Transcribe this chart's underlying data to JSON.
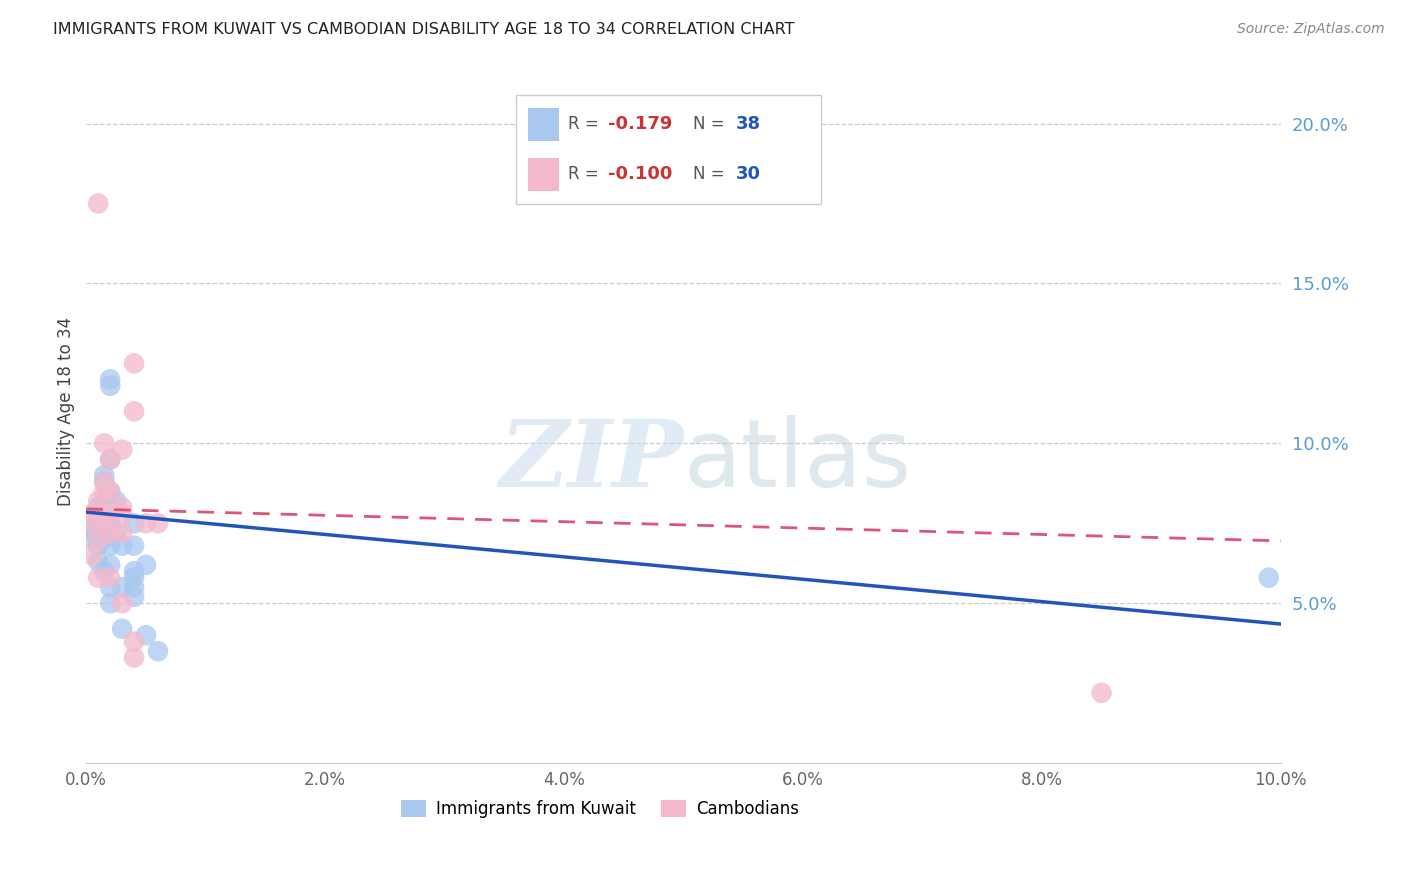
{
  "title": "IMMIGRANTS FROM KUWAIT VS CAMBODIAN DISABILITY AGE 18 TO 34 CORRELATION CHART",
  "source": "Source: ZipAtlas.com",
  "ylabel": "Disability Age 18 to 34",
  "xlim": [
    0.0,
    0.1
  ],
  "ylim": [
    0.0,
    0.22
  ],
  "xticks": [
    0.0,
    0.02,
    0.04,
    0.06,
    0.08,
    0.1
  ],
  "xtick_labels": [
    "0.0%",
    "2.0%",
    "4.0%",
    "6.0%",
    "8.0%",
    "10.0%"
  ],
  "yticks_right": [
    0.05,
    0.1,
    0.15,
    0.2
  ],
  "ytick_labels_right": [
    "5.0%",
    "10.0%",
    "15.0%",
    "20.0%"
  ],
  "blue_color": "#A8C8F0",
  "pink_color": "#F4B8CC",
  "line_blue": "#2255BB",
  "line_pink": "#DD5577",
  "watermark": "ZIPatlas",
  "blue_dots": [
    [
      0.0005,
      0.07
    ],
    [
      0.0005,
      0.073
    ],
    [
      0.001,
      0.072
    ],
    [
      0.001,
      0.068
    ],
    [
      0.001,
      0.075
    ],
    [
      0.001,
      0.08
    ],
    [
      0.001,
      0.063
    ],
    [
      0.0015,
      0.09
    ],
    [
      0.0015,
      0.088
    ],
    [
      0.0015,
      0.082
    ],
    [
      0.0015,
      0.07
    ],
    [
      0.0015,
      0.078
    ],
    [
      0.0015,
      0.06
    ],
    [
      0.002,
      0.12
    ],
    [
      0.002,
      0.118
    ],
    [
      0.002,
      0.095
    ],
    [
      0.002,
      0.085
    ],
    [
      0.002,
      0.075
    ],
    [
      0.002,
      0.072
    ],
    [
      0.002,
      0.068
    ],
    [
      0.002,
      0.062
    ],
    [
      0.002,
      0.055
    ],
    [
      0.002,
      0.05
    ],
    [
      0.0025,
      0.082
    ],
    [
      0.0025,
      0.072
    ],
    [
      0.003,
      0.068
    ],
    [
      0.003,
      0.055
    ],
    [
      0.003,
      0.042
    ],
    [
      0.004,
      0.075
    ],
    [
      0.004,
      0.068
    ],
    [
      0.004,
      0.06
    ],
    [
      0.004,
      0.055
    ],
    [
      0.004,
      0.058
    ],
    [
      0.004,
      0.052
    ],
    [
      0.005,
      0.062
    ],
    [
      0.005,
      0.04
    ],
    [
      0.006,
      0.035
    ],
    [
      0.099,
      0.058
    ]
  ],
  "pink_dots": [
    [
      0.0005,
      0.078
    ],
    [
      0.0005,
      0.075
    ],
    [
      0.0005,
      0.065
    ],
    [
      0.001,
      0.175
    ],
    [
      0.001,
      0.082
    ],
    [
      0.001,
      0.078
    ],
    [
      0.001,
      0.07
    ],
    [
      0.001,
      0.058
    ],
    [
      0.0015,
      0.1
    ],
    [
      0.0015,
      0.088
    ],
    [
      0.0015,
      0.085
    ],
    [
      0.0015,
      0.078
    ],
    [
      0.0015,
      0.075
    ],
    [
      0.002,
      0.095
    ],
    [
      0.002,
      0.085
    ],
    [
      0.002,
      0.078
    ],
    [
      0.002,
      0.072
    ],
    [
      0.002,
      0.058
    ],
    [
      0.003,
      0.098
    ],
    [
      0.003,
      0.08
    ],
    [
      0.003,
      0.078
    ],
    [
      0.003,
      0.072
    ],
    [
      0.003,
      0.05
    ],
    [
      0.004,
      0.125
    ],
    [
      0.004,
      0.11
    ],
    [
      0.004,
      0.038
    ],
    [
      0.004,
      0.033
    ],
    [
      0.005,
      0.075
    ],
    [
      0.006,
      0.075
    ],
    [
      0.085,
      0.022
    ]
  ],
  "blue_trendline": [
    [
      0.0,
      0.0785
    ],
    [
      0.1,
      0.0435
    ]
  ],
  "pink_trendline": [
    [
      0.0,
      0.0795
    ],
    [
      0.1,
      0.0695
    ]
  ]
}
